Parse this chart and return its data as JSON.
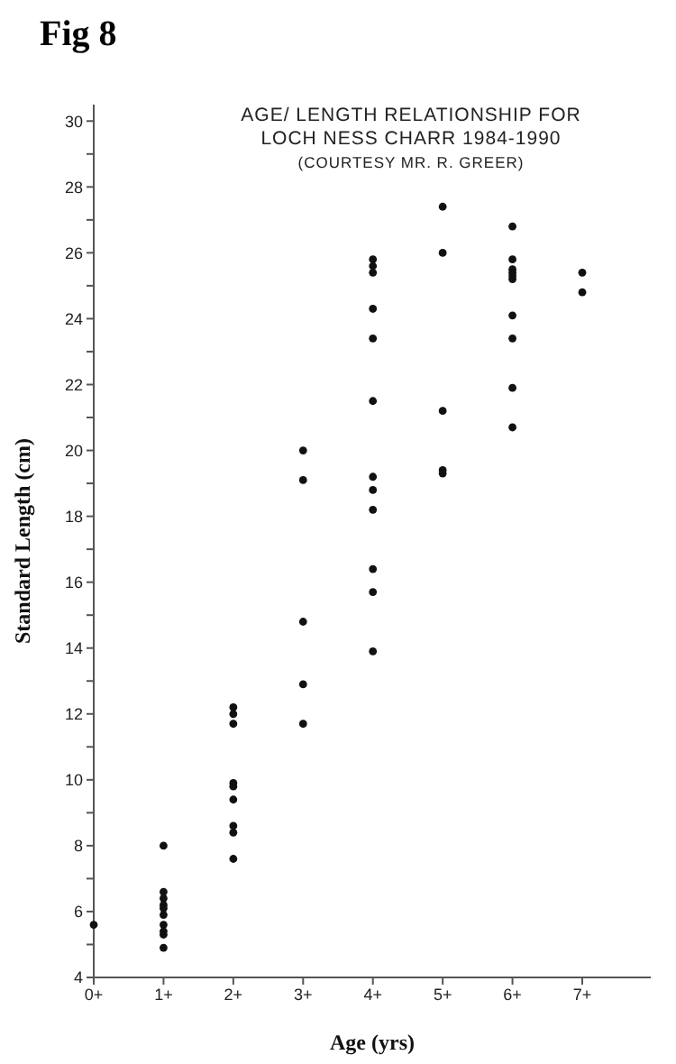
{
  "chart_data": {
    "type": "scatter",
    "title": "Fig 8",
    "subtitle": "AGE/ LENGTH RELATIONSHIP FOR LOCH NESS CHARR 1984-1990",
    "annotations": [
      "(COURTESY MR. R. GREER)"
    ],
    "xlabel": "Age (yrs)",
    "ylabel": "Standard Length (cm)",
    "categories": [
      "0+",
      "1+",
      "2+",
      "3+",
      "4+",
      "5+",
      "6+",
      "7+"
    ],
    "ylim": [
      4,
      30.5
    ],
    "yticks": [
      4,
      {
        "value": 5,
        "label": null
      },
      6,
      {
        "value": 7,
        "label": null
      },
      8,
      {
        "value": 9,
        "label": null
      },
      10,
      {
        "value": 11,
        "label": null
      },
      12,
      {
        "value": 13,
        "label": null
      },
      14,
      {
        "value": 15,
        "label": null
      },
      16,
      {
        "value": 17,
        "label": null
      },
      18,
      {
        "value": 19,
        "label": null
      },
      20,
      {
        "value": 21,
        "label": null
      },
      22,
      {
        "value": 23,
        "label": null
      },
      24,
      {
        "value": 25,
        "label": null
      },
      26,
      {
        "value": 27,
        "label": null
      },
      28,
      {
        "value": 29,
        "label": null
      },
      30
    ],
    "marker": "circle",
    "series": [
      {
        "color": "#111111",
        "x": [
          "0+",
          "1+",
          "1+",
          "1+",
          "1+",
          "1+",
          "1+",
          "1+",
          "1+",
          "1+",
          "1+",
          "2+",
          "2+",
          "2+",
          "2+",
          "2+",
          "2+",
          "2+",
          "2+",
          "2+",
          "3+",
          "3+",
          "3+",
          "3+",
          "3+",
          "4+",
          "4+",
          "4+",
          "4+",
          "4+",
          "4+",
          "4+",
          "4+",
          "4+",
          "4+",
          "4+",
          "4+",
          "5+",
          "5+",
          "5+",
          "5+",
          "5+",
          "6+",
          "6+",
          "6+",
          "6+",
          "6+",
          "6+",
          "6+",
          "6+",
          "6+",
          "6+",
          "7+",
          "7+"
        ],
        "values": [
          5.6,
          8.0,
          6.6,
          6.4,
          6.2,
          6.1,
          5.9,
          5.6,
          5.4,
          5.3,
          4.9,
          12.2,
          12.0,
          11.7,
          9.9,
          9.8,
          9.4,
          8.6,
          8.4,
          7.6,
          20.0,
          19.1,
          14.8,
          12.9,
          11.7,
          25.8,
          25.6,
          25.4,
          24.3,
          23.4,
          21.5,
          19.2,
          18.8,
          18.2,
          16.4,
          15.7,
          13.9,
          27.4,
          26.0,
          21.2,
          19.4,
          19.3,
          26.8,
          25.8,
          25.5,
          25.4,
          25.3,
          25.2,
          24.1,
          23.4,
          21.9,
          20.7,
          25.4,
          24.8
        ]
      }
    ]
  }
}
